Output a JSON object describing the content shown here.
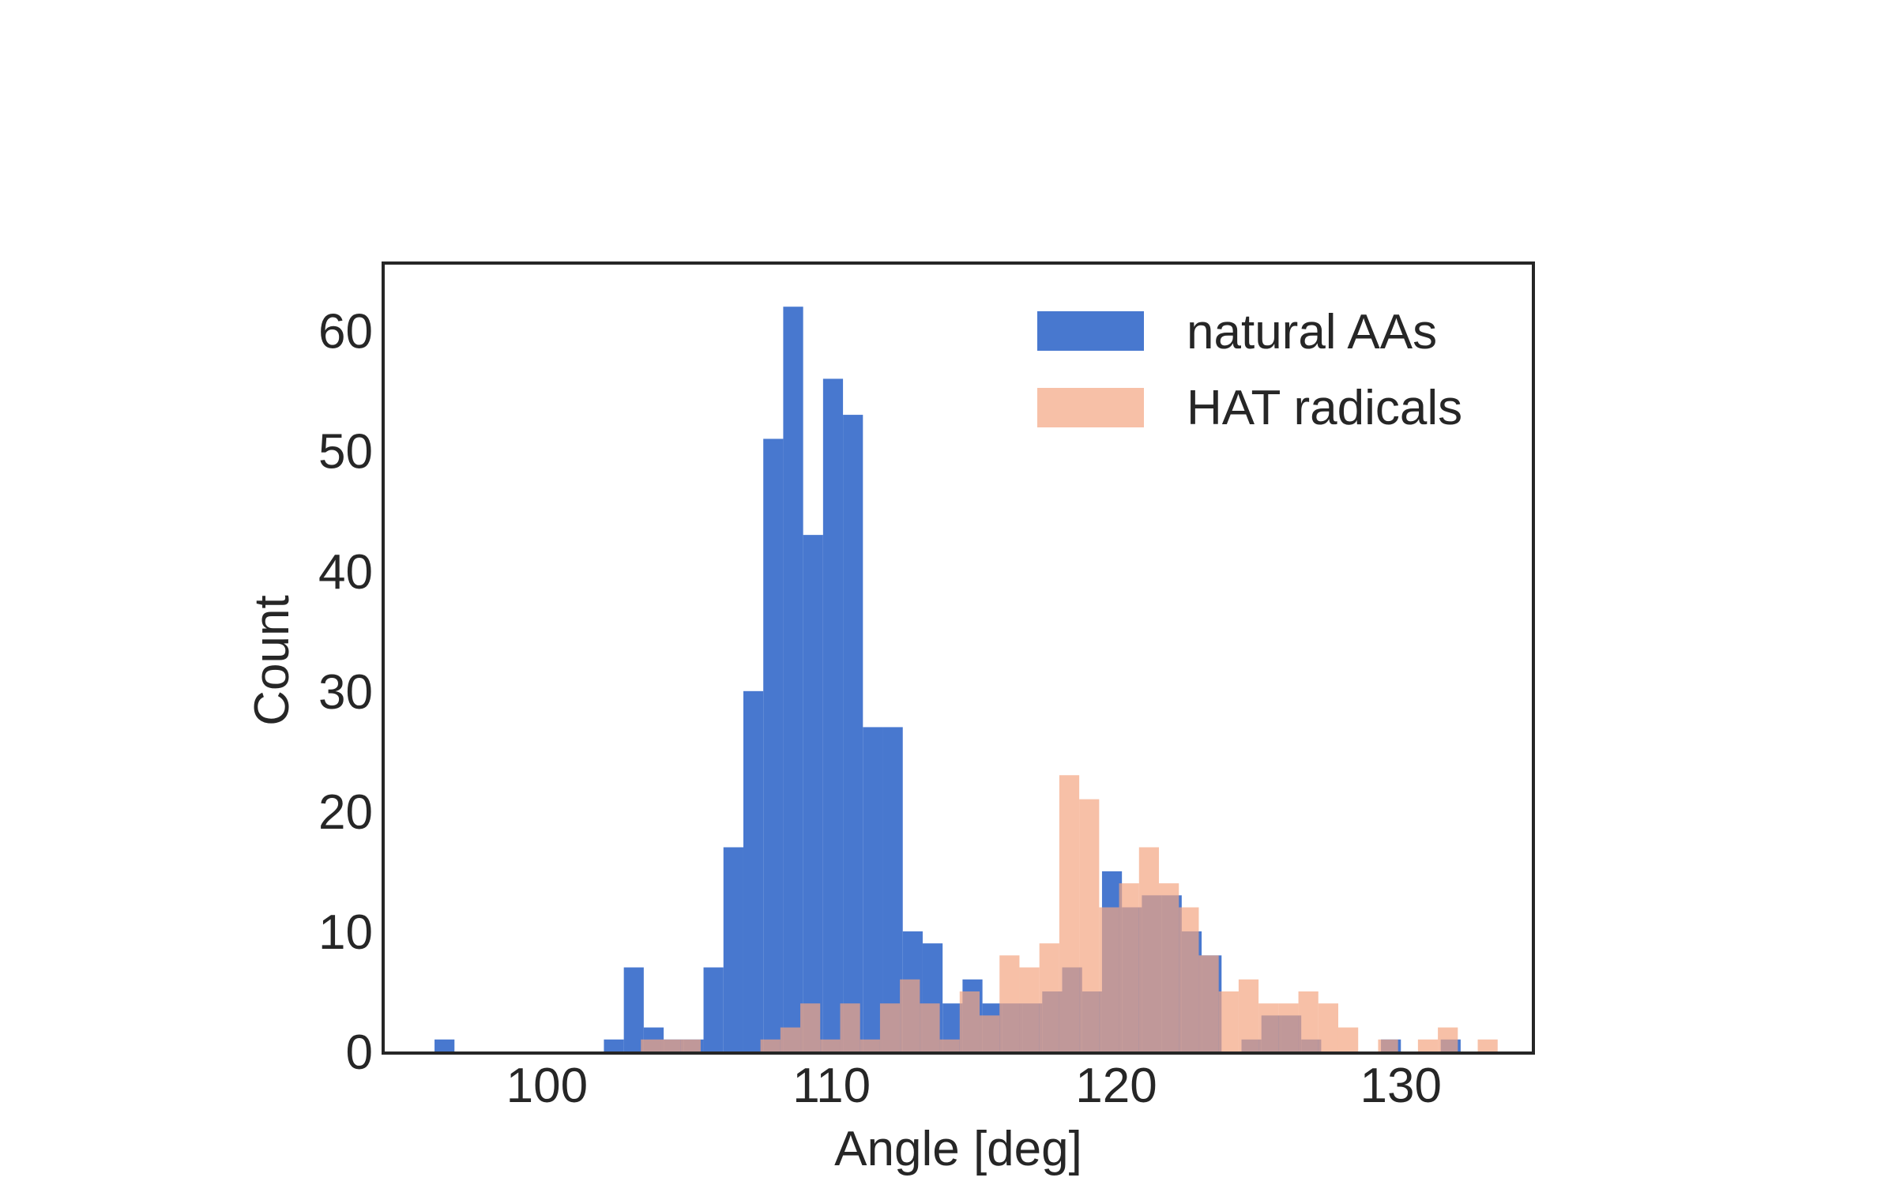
{
  "chart_data": {
    "type": "bar",
    "subtype": "overlaid-histogram",
    "xlabel": "Angle [deg]",
    "ylabel": "Count",
    "xlim": [
      94.3,
      134.6
    ],
    "ylim": [
      0,
      65.5
    ],
    "xticks": [
      100,
      110,
      120,
      130
    ],
    "yticks": [
      0,
      10,
      20,
      30,
      40,
      50,
      60
    ],
    "grid": false,
    "legend_position": "top-right",
    "series": [
      {
        "name": "natural AAs",
        "color": "#4878cf",
        "opacity": 1.0,
        "bins": [
          {
            "x0": 96.05,
            "x1": 96.75,
            "count": 1
          },
          {
            "x0": 102.0,
            "x1": 102.7,
            "count": 1
          },
          {
            "x0": 102.7,
            "x1": 103.4,
            "count": 7
          },
          {
            "x0": 103.4,
            "x1": 104.1,
            "count": 2
          },
          {
            "x0": 104.1,
            "x1": 104.8,
            "count": 1
          },
          {
            "x0": 104.8,
            "x1": 105.5,
            "count": 1
          },
          {
            "x0": 105.5,
            "x1": 106.2,
            "count": 7
          },
          {
            "x0": 106.2,
            "x1": 106.9,
            "count": 17
          },
          {
            "x0": 106.9,
            "x1": 107.6,
            "count": 30
          },
          {
            "x0": 107.6,
            "x1": 108.3,
            "count": 51
          },
          {
            "x0": 108.3,
            "x1": 109.0,
            "count": 62
          },
          {
            "x0": 109.0,
            "x1": 109.7,
            "count": 43
          },
          {
            "x0": 109.7,
            "x1": 110.4,
            "count": 56
          },
          {
            "x0": 110.4,
            "x1": 111.1,
            "count": 53
          },
          {
            "x0": 111.1,
            "x1": 111.8,
            "count": 27
          },
          {
            "x0": 111.8,
            "x1": 112.5,
            "count": 27
          },
          {
            "x0": 112.5,
            "x1": 113.2,
            "count": 10
          },
          {
            "x0": 113.2,
            "x1": 113.9,
            "count": 9
          },
          {
            "x0": 113.9,
            "x1": 114.6,
            "count": 4
          },
          {
            "x0": 114.6,
            "x1": 115.3,
            "count": 6
          },
          {
            "x0": 115.3,
            "x1": 116.0,
            "count": 4
          },
          {
            "x0": 116.0,
            "x1": 116.7,
            "count": 4
          },
          {
            "x0": 116.7,
            "x1": 117.4,
            "count": 4
          },
          {
            "x0": 117.4,
            "x1": 118.1,
            "count": 5
          },
          {
            "x0": 118.1,
            "x1": 118.8,
            "count": 7
          },
          {
            "x0": 118.8,
            "x1": 119.5,
            "count": 5
          },
          {
            "x0": 119.5,
            "x1": 120.2,
            "count": 15
          },
          {
            "x0": 120.2,
            "x1": 120.9,
            "count": 12
          },
          {
            "x0": 120.9,
            "x1": 121.6,
            "count": 13
          },
          {
            "x0": 121.6,
            "x1": 122.3,
            "count": 13
          },
          {
            "x0": 122.3,
            "x1": 123.0,
            "count": 10
          },
          {
            "x0": 123.0,
            "x1": 123.7,
            "count": 8
          },
          {
            "x0": 124.4,
            "x1": 125.1,
            "count": 1
          },
          {
            "x0": 125.1,
            "x1": 125.8,
            "count": 3
          },
          {
            "x0": 125.8,
            "x1": 126.5,
            "count": 3
          },
          {
            "x0": 126.5,
            "x1": 127.2,
            "count": 1
          },
          {
            "x0": 129.3,
            "x1": 130.0,
            "count": 1
          },
          {
            "x0": 131.4,
            "x1": 132.1,
            "count": 1
          }
        ]
      },
      {
        "name": "HAT radicals",
        "color": "#f4a582",
        "opacity": 0.7,
        "bins": [
          {
            "x0": 102.6,
            "x1": 103.3,
            "count": 0
          },
          {
            "x0": 103.3,
            "x1": 104.0,
            "count": 1
          },
          {
            "x0": 104.0,
            "x1": 104.7,
            "count": 1
          },
          {
            "x0": 104.7,
            "x1": 105.4,
            "count": 1
          },
          {
            "x0": 107.5,
            "x1": 108.2,
            "count": 1
          },
          {
            "x0": 108.2,
            "x1": 108.9,
            "count": 2
          },
          {
            "x0": 108.9,
            "x1": 109.6,
            "count": 4
          },
          {
            "x0": 109.6,
            "x1": 110.3,
            "count": 1
          },
          {
            "x0": 110.3,
            "x1": 111.0,
            "count": 4
          },
          {
            "x0": 111.0,
            "x1": 111.7,
            "count": 1
          },
          {
            "x0": 111.7,
            "x1": 112.4,
            "count": 4
          },
          {
            "x0": 112.4,
            "x1": 113.1,
            "count": 6
          },
          {
            "x0": 113.1,
            "x1": 113.8,
            "count": 4
          },
          {
            "x0": 113.8,
            "x1": 114.5,
            "count": 1
          },
          {
            "x0": 114.5,
            "x1": 115.2,
            "count": 5
          },
          {
            "x0": 115.2,
            "x1": 115.9,
            "count": 3
          },
          {
            "x0": 115.9,
            "x1": 116.6,
            "count": 8
          },
          {
            "x0": 116.6,
            "x1": 117.3,
            "count": 7
          },
          {
            "x0": 117.3,
            "x1": 118.0,
            "count": 9
          },
          {
            "x0": 118.0,
            "x1": 118.7,
            "count": 23
          },
          {
            "x0": 118.7,
            "x1": 119.4,
            "count": 21
          },
          {
            "x0": 119.4,
            "x1": 120.1,
            "count": 12
          },
          {
            "x0": 120.1,
            "x1": 120.8,
            "count": 14
          },
          {
            "x0": 120.8,
            "x1": 121.5,
            "count": 17
          },
          {
            "x0": 121.5,
            "x1": 122.2,
            "count": 14
          },
          {
            "x0": 122.2,
            "x1": 122.9,
            "count": 12
          },
          {
            "x0": 122.9,
            "x1": 123.6,
            "count": 8
          },
          {
            "x0": 123.6,
            "x1": 124.3,
            "count": 5
          },
          {
            "x0": 124.3,
            "x1": 125.0,
            "count": 6
          },
          {
            "x0": 125.0,
            "x1": 125.7,
            "count": 4
          },
          {
            "x0": 125.7,
            "x1": 126.4,
            "count": 4
          },
          {
            "x0": 126.4,
            "x1": 127.1,
            "count": 5
          },
          {
            "x0": 127.1,
            "x1": 127.8,
            "count": 4
          },
          {
            "x0": 127.8,
            "x1": 128.5,
            "count": 2
          },
          {
            "x0": 128.5,
            "x1": 129.2,
            "count": 0
          },
          {
            "x0": 129.2,
            "x1": 129.9,
            "count": 1
          },
          {
            "x0": 130.6,
            "x1": 131.3,
            "count": 1
          },
          {
            "x0": 131.3,
            "x1": 132.0,
            "count": 2
          },
          {
            "x0": 132.0,
            "x1": 132.7,
            "count": 0
          },
          {
            "x0": 132.7,
            "x1": 133.4,
            "count": 1
          }
        ]
      }
    ]
  }
}
